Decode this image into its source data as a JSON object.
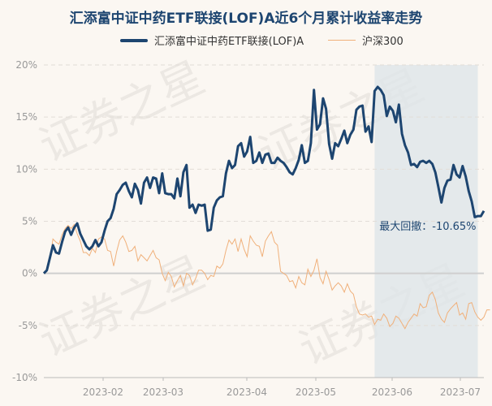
{
  "chart_data": {
    "type": "line",
    "title": "汇添富中证中药ETF联接(LOF)A近6个月累计收益率走势",
    "ylim": [
      -10,
      20
    ],
    "yticks": [
      "20%",
      "15%",
      "10%",
      "5%",
      "0%",
      "-5%",
      "-10%"
    ],
    "xticks": [
      "2023-02",
      "2023-03",
      "2023-04",
      "2023-05",
      "2023-06",
      "2023-07"
    ],
    "colors": {
      "fund": "#1d4570",
      "index": "#f0b07a",
      "drawdown": "#dfe5e8"
    },
    "legend_placement": "top-center",
    "grid": true,
    "watermark": "证券之星",
    "drawdown": {
      "label": "最大回撤：-10.65%",
      "start_index": 109,
      "end_index": 143
    },
    "series": [
      {
        "name": "汇添富中证中药ETF联接(LOF)A",
        "values": [
          0,
          0.3,
          1.5,
          2.7,
          2.0,
          1.9,
          3.0,
          4.0,
          4.4,
          3.7,
          4.4,
          4.8,
          3.8,
          3.2,
          2.6,
          2.3,
          2.6,
          3.2,
          2.6,
          3.0,
          4.1,
          5.0,
          5.3,
          6.2,
          7.6,
          8.0,
          8.5,
          8.7,
          7.9,
          7.3,
          8.6,
          8.0,
          6.7,
          8.7,
          9.2,
          8.2,
          9.2,
          9.1,
          7.7,
          9.6,
          7.7,
          7.6,
          7.6,
          7.2,
          9.1,
          7.4,
          9.7,
          10.4,
          6.3,
          6.6,
          5.8,
          6.6,
          6.5,
          6.6,
          4.1,
          4.2,
          6.3,
          7.0,
          7.3,
          7.4,
          9.6,
          10.8,
          10.1,
          10.4,
          12.2,
          12.5,
          11.2,
          11.7,
          13.1,
          10.6,
          10.8,
          11.6,
          10.6,
          11.4,
          11.5,
          10.6,
          10.6,
          11.1,
          10.8,
          10.6,
          10.2,
          9.7,
          9.5,
          10.1,
          10.9,
          12.3,
          10.6,
          10.8,
          12.5,
          17.6,
          13.8,
          14.3,
          16.8,
          15.8,
          12.4,
          11.0,
          12.5,
          12.2,
          12.9,
          13.7,
          12.5,
          13.3,
          13.8,
          15.7,
          16.0,
          16.1,
          13.6,
          14.1,
          12.6,
          17.5,
          17.9,
          17.6,
          17.1,
          15.1,
          16.0,
          15.6,
          14.5,
          16.2,
          13.4,
          12.3,
          11.6,
          10.4,
          10.5,
          10.2,
          10.7,
          10.8,
          10.6,
          10.8,
          10.5,
          9.7,
          8.3,
          6.8,
          8.2,
          8.9,
          9.0,
          10.4,
          9.5,
          9.2,
          10.3,
          9.3,
          7.9,
          6.9,
          5.4,
          5.5,
          5.5,
          6.0
        ],
        "width": 3
      },
      {
        "name": "沪深300",
        "values": [
          0,
          0.2,
          1.3,
          3.3,
          3.0,
          2.8,
          3.7,
          4.3,
          4.6,
          4.3,
          4.7,
          3.8,
          3.1,
          2.0,
          2.0,
          1.7,
          2.4,
          2.0,
          3.3,
          3.5,
          3.3,
          2.2,
          2.1,
          0.7,
          2.1,
          3.2,
          3.6,
          3.0,
          2.1,
          2.2,
          2.6,
          1.2,
          1.8,
          1.5,
          1.2,
          1.7,
          2.2,
          1.5,
          1.3,
          0.0,
          -0.7,
          0.1,
          -0.3,
          -1.3,
          -0.7,
          -0.2,
          -1.2,
          0.0,
          -0.2,
          -1.1,
          -0.5,
          0.3,
          0.3,
          0.0,
          -0.6,
          -0.2,
          -0.3,
          0.7,
          0.5,
          0.9,
          2.2,
          3.2,
          2.8,
          3.3,
          2.1,
          3.3,
          2.3,
          1.6,
          3.6,
          3.1,
          2.7,
          2.6,
          1.6,
          3.1,
          3.6,
          4.0,
          3.0,
          2.7,
          0.2,
          0.0,
          -0.2,
          -0.8,
          -0.7,
          -1.4,
          -0.3,
          -0.9,
          -1.1,
          0.4,
          -0.3,
          0.3,
          1.4,
          -0.4,
          -1.0,
          0.2,
          -0.6,
          -1.6,
          -1.2,
          -0.9,
          -1.2,
          -1.8,
          -1.0,
          -1.7,
          -2.0,
          -3.2,
          -3.9,
          -4.0,
          -3.9,
          -4.2,
          -4.1,
          -4.9,
          -4.4,
          -4.5,
          -3.9,
          -4.3,
          -5.1,
          -4.8,
          -4.1,
          -4.3,
          -4.8,
          -5.3,
          -4.7,
          -4.3,
          -3.9,
          -4.1,
          -2.9,
          -3.3,
          -3.2,
          -2.1,
          -1.8,
          -2.5,
          -3.8,
          -4.4,
          -4.7,
          -3.8,
          -3.4,
          -3.1,
          -2.8,
          -4.0,
          -3.8,
          -4.4,
          -2.9,
          -2.8,
          -3.7,
          -4.2,
          -4.5,
          -4.2,
          -3.5,
          -3.5
        ],
        "width": 1
      }
    ]
  }
}
